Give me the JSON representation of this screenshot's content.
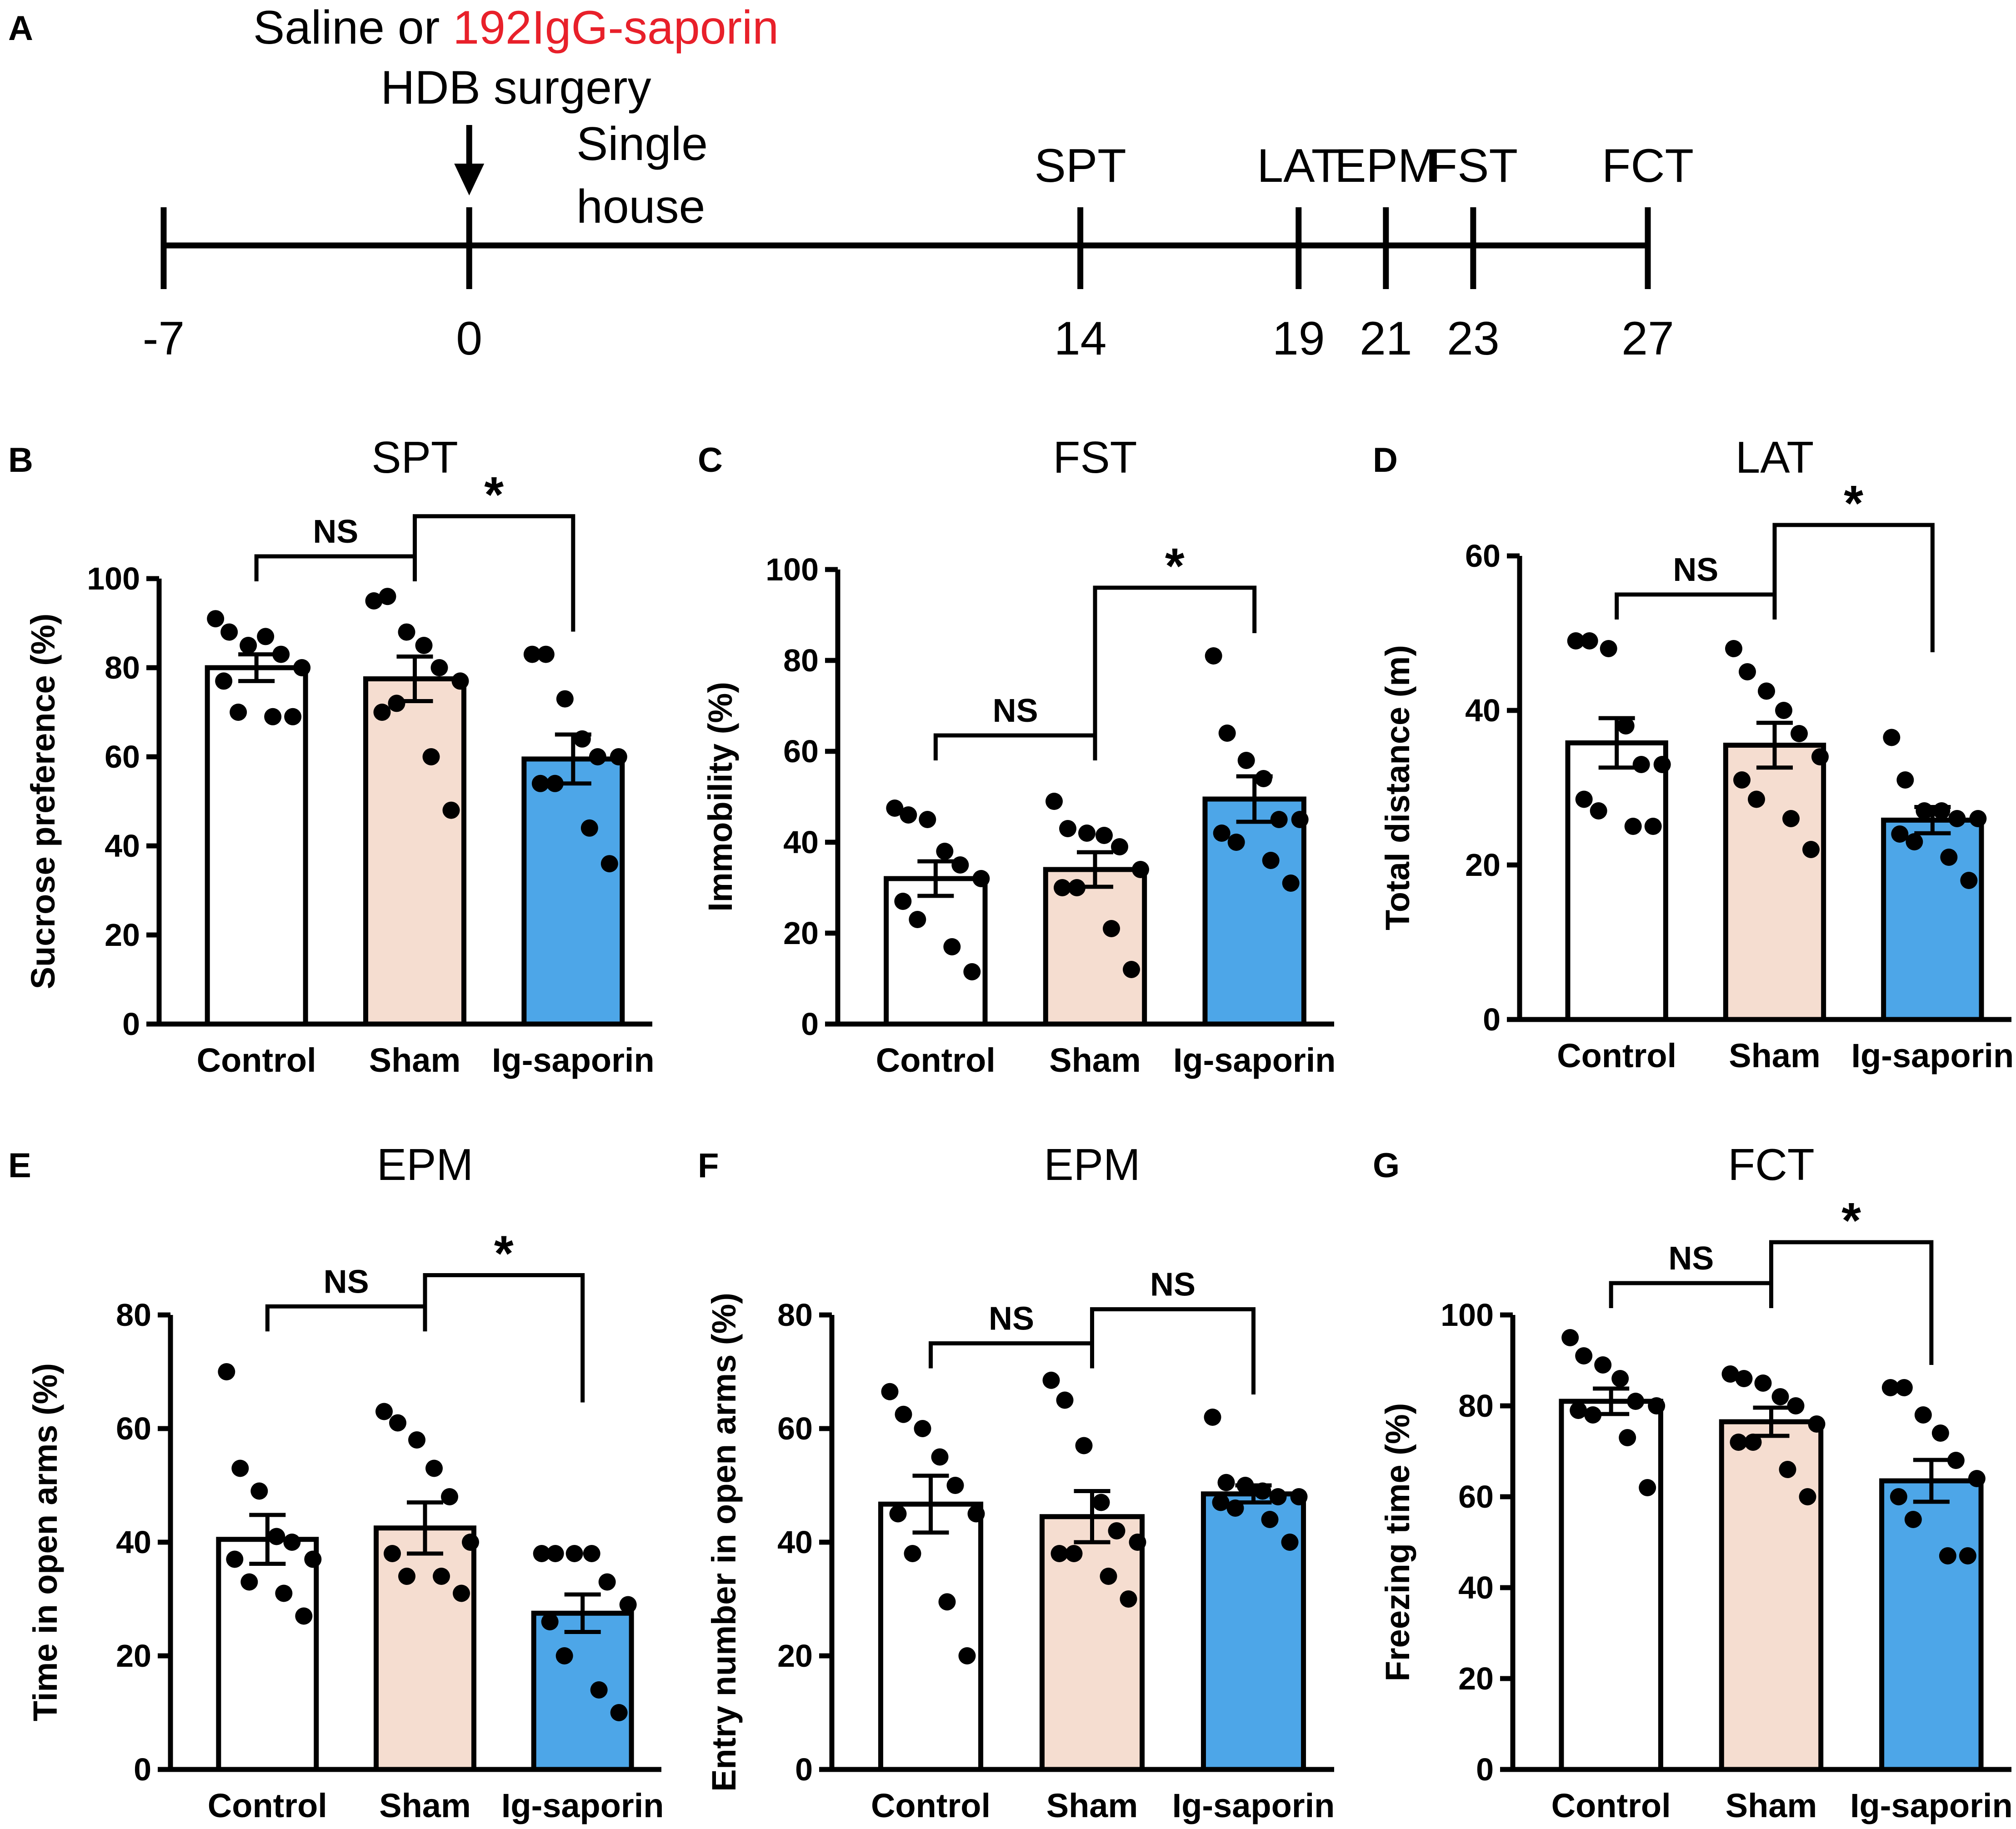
{
  "colors": {
    "control": "#ffffff",
    "sham": "#f5ddd0",
    "saporin": "#4da6e8",
    "highlight": "#e8202a",
    "ink": "#000000"
  },
  "timeline": {
    "panel_letter": "A",
    "treatment_prefix": "Saline or ",
    "treatment_highlight": "192IgG-saporin",
    "surgery": "HDB surgery",
    "housing_line1": "Single",
    "housing_line2": "house",
    "days": [
      -7,
      0,
      14,
      19,
      21,
      23,
      27
    ],
    "day_labels": [
      "-7",
      "0",
      "14",
      "19",
      "21",
      "23",
      "27"
    ],
    "tests": [
      {
        "label": "SPT",
        "day": 14
      },
      {
        "label": "LAT",
        "day": 19
      },
      {
        "label": "EPM",
        "day": 21
      },
      {
        "label": "FST",
        "day": 23
      },
      {
        "label": "FCT",
        "day": 27
      }
    ]
  },
  "chart_data": [
    {
      "panel": "B",
      "type": "bar",
      "title": "SPT",
      "ylabel": "Sucrose preference (%)",
      "categories": [
        "Control",
        "Sham",
        "Ig-saporin"
      ],
      "ylim": [
        0,
        100
      ],
      "yticks": [
        0,
        20,
        40,
        60,
        80,
        100
      ],
      "means": [
        80,
        77.5,
        59.5
      ],
      "sem": [
        3,
        5,
        5.5
      ],
      "points": [
        [
          91,
          88,
          85,
          87,
          83,
          80,
          77,
          70,
          69,
          69
        ],
        [
          95,
          96,
          88,
          85,
          80,
          77,
          70,
          72,
          60,
          48
        ],
        [
          83,
          83,
          73,
          64,
          60,
          60,
          54,
          54,
          44,
          36
        ]
      ],
      "comparisons": [
        {
          "groups": [
            0,
            1
          ],
          "label": "NS",
          "y": 105,
          "bracket": "down"
        },
        {
          "groups": [
            1,
            2
          ],
          "label": "*",
          "y": 114,
          "bracket": "right"
        }
      ]
    },
    {
      "panel": "C",
      "type": "bar",
      "title": "FST",
      "ylabel": "Immobility (%)",
      "categories": [
        "Control",
        "Sham",
        "Ig-saporin"
      ],
      "ylim": [
        0,
        100
      ],
      "yticks": [
        0,
        20,
        40,
        60,
        80,
        100
      ],
      "means": [
        32,
        34,
        49.5
      ],
      "sem": [
        3.8,
        3.8,
        5
      ],
      "points": [
        [
          47.5,
          46,
          45,
          38,
          35,
          32,
          27,
          23,
          17,
          11.5
        ],
        [
          49,
          43,
          42,
          41.5,
          39,
          34,
          30,
          30,
          21,
          12
        ],
        [
          81,
          64,
          58,
          54,
          45,
          45,
          42,
          40,
          36,
          31
        ]
      ],
      "comparisons": [
        {
          "groups": [
            0,
            1
          ],
          "label": "NS",
          "y": 63.5,
          "bracket": "down"
        },
        {
          "groups": [
            1,
            2
          ],
          "label": "*",
          "y": 96,
          "bracket": "right"
        }
      ]
    },
    {
      "panel": "D",
      "type": "bar",
      "title": "LAT",
      "ylabel": "Total distance (m)",
      "categories": [
        "Control",
        "Sham",
        "Ig-saporin"
      ],
      "ylim": [
        0,
        60
      ],
      "yticks": [
        0,
        20,
        40,
        60
      ],
      "means": [
        35.8,
        35.5,
        25.8
      ],
      "sem": [
        3.2,
        2.9,
        1.7
      ],
      "points": [
        [
          49,
          49,
          48,
          38,
          33,
          33,
          28.5,
          27,
          25,
          25
        ],
        [
          48,
          45,
          42.5,
          40,
          37,
          34,
          31,
          28.5,
          26,
          22
        ],
        [
          36.5,
          31,
          27,
          27,
          26,
          26,
          24,
          23,
          21,
          18
        ]
      ],
      "comparisons": [
        {
          "groups": [
            0,
            1
          ],
          "label": "NS",
          "y": 55,
          "bracket": "down"
        },
        {
          "groups": [
            1,
            2
          ],
          "label": "*",
          "y": 64,
          "bracket": "right"
        }
      ]
    },
    {
      "panel": "E",
      "type": "bar",
      "title": "EPM",
      "ylabel": "Time in open arms (%)",
      "categories": [
        "Control",
        "Sham",
        "Ig-saporin"
      ],
      "ylim": [
        0,
        80
      ],
      "yticks": [
        0,
        20,
        40,
        60,
        80
      ],
      "means": [
        40.5,
        42.5,
        27.5
      ],
      "sem": [
        4.3,
        4.5,
        3.3
      ],
      "points": [
        [
          70,
          53,
          49,
          41,
          40,
          37,
          37,
          33,
          31,
          27
        ],
        [
          63,
          61,
          58,
          53,
          48,
          40,
          38,
          34,
          34,
          31
        ],
        [
          38,
          38,
          38,
          38,
          33,
          29,
          26,
          20,
          14,
          10
        ]
      ],
      "comparisons": [
        {
          "groups": [
            0,
            1
          ],
          "label": "NS",
          "y": 81.5,
          "bracket": "down"
        },
        {
          "groups": [
            1,
            2
          ],
          "label": "*",
          "y": 87,
          "bracket": "right"
        }
      ]
    },
    {
      "panel": "F",
      "type": "bar",
      "title": "EPM",
      "ylabel": "Entry number in open arms (%)",
      "categories": [
        "Control",
        "Sham",
        "Ig-saporin"
      ],
      "ylim": [
        0,
        80
      ],
      "yticks": [
        0,
        20,
        40,
        60,
        80
      ],
      "means": [
        46.7,
        44.5,
        48.5
      ],
      "sem": [
        5,
        4.5,
        1.5
      ],
      "points": [
        [
          66.5,
          62.5,
          60,
          55,
          50,
          45,
          45,
          38,
          29.5,
          20
        ],
        [
          68.5,
          65,
          57,
          47,
          42,
          40,
          38,
          38,
          34,
          30
        ],
        [
          62,
          50.5,
          50,
          49,
          48,
          48,
          47,
          46,
          44,
          40
        ]
      ],
      "comparisons": [
        {
          "groups": [
            0,
            1
          ],
          "label": "NS",
          "y": 75,
          "bracket": "down"
        },
        {
          "groups": [
            1,
            2
          ],
          "label": "NS",
          "y": 81,
          "bracket": "right"
        }
      ]
    },
    {
      "panel": "G",
      "type": "bar",
      "title": "FCT",
      "ylabel": "Freezing time (%)",
      "categories": [
        "Control",
        "Sham",
        "Ig-saporin"
      ],
      "ylim": [
        0,
        100
      ],
      "yticks": [
        0,
        20,
        40,
        60,
        80,
        100
      ],
      "means": [
        81,
        76.5,
        63.5
      ],
      "sem": [
        2.8,
        3.1,
        4.6
      ],
      "points": [
        [
          95,
          91,
          89,
          86,
          81,
          80,
          79,
          78,
          73,
          62
        ],
        [
          87,
          86,
          85,
          82,
          80,
          76,
          72,
          72,
          66,
          60
        ],
        [
          84,
          84,
          78,
          74,
          68,
          64,
          60,
          55,
          47,
          47
        ]
      ],
      "comparisons": [
        {
          "groups": [
            0,
            1
          ],
          "label": "NS",
          "y": 107,
          "bracket": "down"
        },
        {
          "groups": [
            1,
            2
          ],
          "label": "*",
          "y": 116,
          "bracket": "right"
        }
      ]
    }
  ]
}
